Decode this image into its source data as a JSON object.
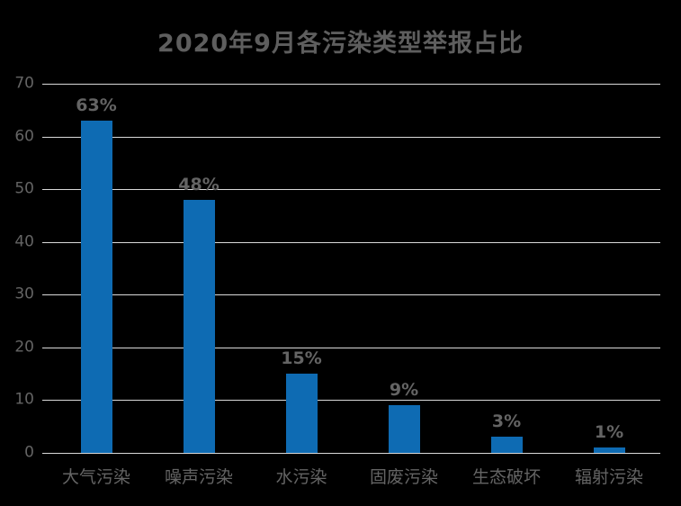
{
  "chart_data": {
    "type": "bar",
    "title": "2020年9月各污染类型举报占比",
    "categories": [
      "大气污染",
      "噪声污染",
      "水污染",
      "固废污染",
      "生态破坏",
      "辐射污染"
    ],
    "values": [
      63,
      48,
      15,
      9,
      3,
      1
    ],
    "data_labels": [
      "63%",
      "48%",
      "15%",
      "9%",
      "3%",
      "1%"
    ],
    "xlabel": "",
    "ylabel": "",
    "ylim": [
      0,
      70
    ],
    "yticks": [
      0,
      10,
      20,
      30,
      40,
      50,
      60,
      70
    ],
    "grid": true,
    "legend_position": "none"
  },
  "colors": {
    "background": "#000000",
    "bar": "#0E6BB3",
    "title_text": "#5E5E5E",
    "label_text": "#646464",
    "gridline": "#D9D9D9"
  }
}
